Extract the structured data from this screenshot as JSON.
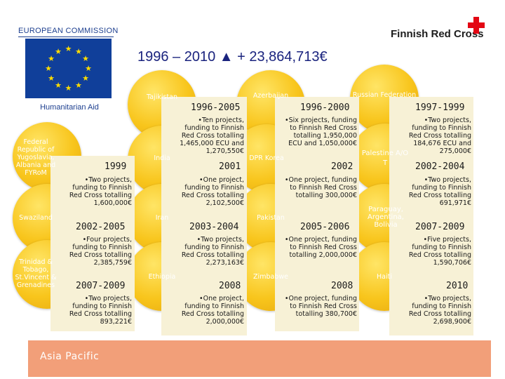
{
  "header": {
    "ec_title": "EUROPEAN COMMISSION",
    "ec_subtitle": "Humanitarian Aid",
    "frc_name": "Finnish Red Cross",
    "main_title": "1996 – 2010 ▲ + 23,864,713€"
  },
  "colors": {
    "circle_gold": "#f8c51c",
    "box_background": "#f7f1d6",
    "asia_pacific_band": "#f29f79",
    "title_blue": "#1a237e",
    "red_cross": "#e30613",
    "eu_blue": "#103f9a"
  },
  "countries": [
    {
      "name": "Tajikistan",
      "period": "1996-2005",
      "desc": "•Ten projects, funding to Finnish Red Cross totalling 1,465,000 ECU and 1,270,550€"
    },
    {
      "name": "Azerbaijan",
      "period": "1996-2000",
      "desc": "•Six projects, funding to Finnish Red Cross totalling 1,950,000 ECU and 1,050,000€"
    },
    {
      "name": "Russian Federation",
      "period": "1997-1999",
      "desc": "•Two projects, funding to Finnish Red Cross totalling 184,676 ECU and 275,000€"
    },
    {
      "name": "Federal Republic of Yugoslavia, Albania and FYRoM",
      "period": "1999",
      "desc": "•Two projects, funding to Finnish Red Cross totalling 1,600,000€"
    },
    {
      "name": "India",
      "period": "2001",
      "desc": "•One project, funding to Finnish Red Cross totalling 2,102,500€"
    },
    {
      "name": "DPR Korea",
      "period": "2002",
      "desc": "•One project, funding to Finnish Red Cross totalling 300,000€"
    },
    {
      "name": "Palestine A/O T",
      "period": "2002-2004",
      "desc": "•Two projects, funding to Finnish Red Cross totalling 691,971€"
    },
    {
      "name": "Swaziland",
      "period": "2002-2005",
      "desc": "•Four projects, funding to Finnish Red Cross totalling 2,385,759€"
    },
    {
      "name": "Iran",
      "period": "2003-2004",
      "desc": "•Two projects, funding to Finnish Red Cross totalling 2,273,163€"
    },
    {
      "name": "Pakistan",
      "period": "2005-2006",
      "desc": "•One project, funding to Finnish Red Cross totalling 2,000,000€"
    },
    {
      "name": "Paraguay, Argentina, Bolivia",
      "period": "2007-2009",
      "desc": "•Five projects, funding to Finnish Red Cross totalling 1,590,706€"
    },
    {
      "name": "Trinidad & Tobago, St.Vincent & Grenadines",
      "period": "2007-2009",
      "desc": "•Two projects, funding to Finnish Red Cross totalling 893,221€"
    },
    {
      "name": "Ethiopia",
      "period": "2008",
      "desc": "•One project, funding to Finnish Red Cross totalling 2,000,000€"
    },
    {
      "name": "Zimbabwe",
      "period": "2008",
      "desc": "•One project, funding to Finnish Red Cross totalling 380,700€"
    },
    {
      "name": "Haiti",
      "period": "2010",
      "desc": "•Two projects, funding to Finnish Red Cross totalling 2,698,900€"
    }
  ],
  "footer": {
    "region_label": "Asia Pacific"
  }
}
